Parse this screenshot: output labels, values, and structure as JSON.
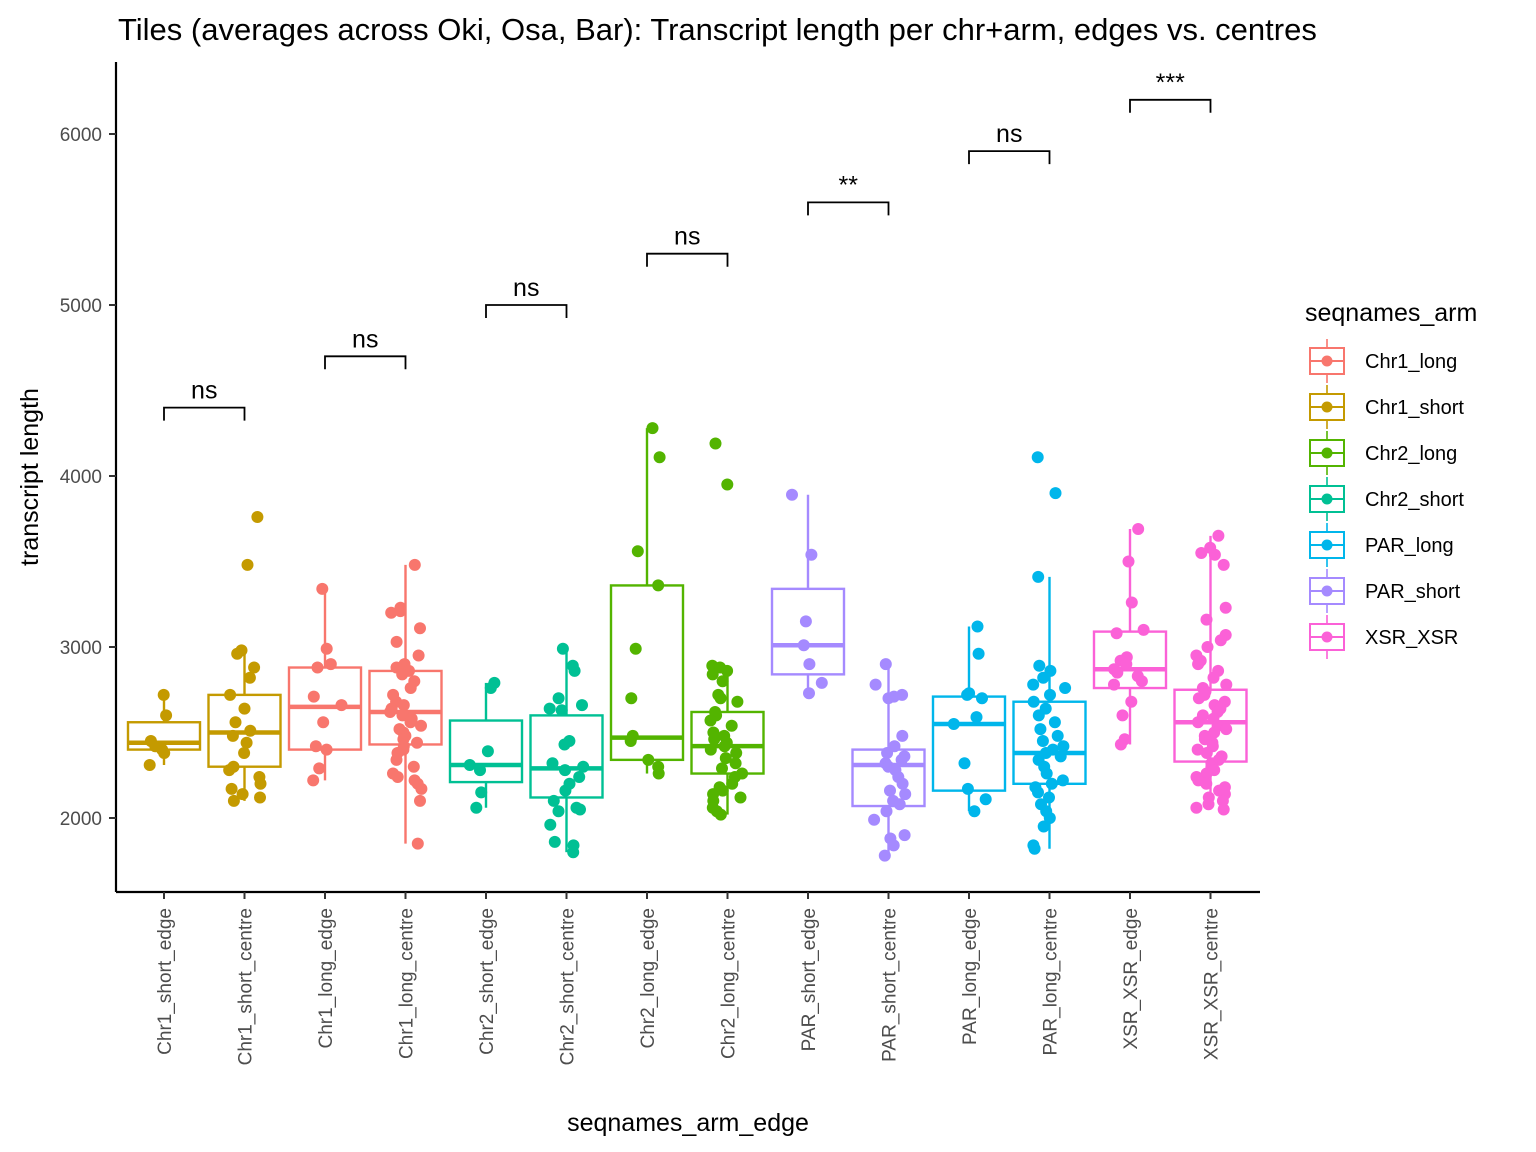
{
  "chart_data": {
    "type": "box",
    "title": "Tiles (averages across Oki, Osa, Bar): Transcript length per chr+arm, edges vs. centres",
    "xlabel": "seqnames_arm_edge",
    "ylabel": "transcript length",
    "ylim": [
      1550,
      6400
    ],
    "yticks": [
      2000,
      3000,
      4000,
      5000,
      6000
    ],
    "grid": false,
    "legend": {
      "title": "seqnames_arm",
      "position": "right",
      "entries": [
        {
          "name": "Chr1_long",
          "color": "#F8766D"
        },
        {
          "name": "Chr1_short",
          "color": "#C49A00"
        },
        {
          "name": "Chr2_long",
          "color": "#53B400"
        },
        {
          "name": "Chr2_short",
          "color": "#00C094"
        },
        {
          "name": "PAR_long",
          "color": "#00B6EB"
        },
        {
          "name": "PAR_short",
          "color": "#A58AFF"
        },
        {
          "name": "XSR_XSR",
          "color": "#FB61D7"
        }
      ]
    },
    "categories": [
      "Chr1_short_edge",
      "Chr1_short_centre",
      "Chr1_long_edge",
      "Chr1_long_centre",
      "Chr2_short_edge",
      "Chr2_short_centre",
      "Chr2_long_edge",
      "Chr2_long_centre",
      "PAR_short_edge",
      "PAR_short_centre",
      "PAR_long_edge",
      "PAR_long_centre",
      "XSR_XSR_edge",
      "XSR_XSR_centre"
    ],
    "boxes": [
      {
        "group": "Chr1_short",
        "min": 2310,
        "q1": 2400,
        "median": 2440,
        "q3": 2560,
        "max": 2720,
        "points": [
          2720,
          2600,
          2450,
          2420,
          2400,
          2380,
          2310
        ]
      },
      {
        "group": "Chr1_short",
        "min": 2100,
        "q1": 2300,
        "median": 2500,
        "q3": 2720,
        "max": 2980,
        "points": [
          3760,
          3480,
          2980,
          2960,
          2880,
          2820,
          2720,
          2640,
          2560,
          2510,
          2480,
          2440,
          2380,
          2300,
          2280,
          2240,
          2200,
          2170,
          2140,
          2120,
          2100
        ]
      },
      {
        "group": "Chr1_long",
        "min": 2220,
        "q1": 2400,
        "median": 2650,
        "q3": 2880,
        "max": 3340,
        "points": [
          3340,
          2990,
          2900,
          2880,
          2710,
          2660,
          2560,
          2420,
          2400,
          2290,
          2220
        ]
      },
      {
        "group": "Chr1_long",
        "min": 1850,
        "q1": 2430,
        "median": 2620,
        "q3": 2860,
        "max": 3480,
        "points": [
          3480,
          3230,
          3210,
          3200,
          3110,
          3030,
          2950,
          2900,
          2880,
          2860,
          2840,
          2800,
          2760,
          2720,
          2680,
          2660,
          2640,
          2620,
          2600,
          2580,
          2560,
          2540,
          2520,
          2500,
          2480,
          2460,
          2440,
          2420,
          2400,
          2380,
          2340,
          2300,
          2260,
          2240,
          2220,
          2200,
          2170,
          2100,
          1850
        ]
      },
      {
        "group": "Chr2_short",
        "min": 2060,
        "q1": 2210,
        "median": 2310,
        "q3": 2570,
        "max": 2790,
        "points": [
          2790,
          2760,
          2390,
          2310,
          2280,
          2150,
          2060
        ]
      },
      {
        "group": "Chr2_short",
        "min": 1800,
        "q1": 2120,
        "median": 2290,
        "q3": 2600,
        "max": 2990,
        "points": [
          2990,
          2890,
          2860,
          2700,
          2660,
          2640,
          2630,
          2450,
          2430,
          2320,
          2300,
          2280,
          2240,
          2200,
          2160,
          2100,
          2060,
          2050,
          2040,
          1960,
          1860,
          1840,
          1800
        ]
      },
      {
        "group": "Chr2_long",
        "min": 2260,
        "q1": 2340,
        "median": 2470,
        "q3": 3360,
        "max": 4280,
        "points": [
          4280,
          4110,
          3560,
          3360,
          2990,
          2700,
          2480,
          2450,
          2340,
          2300,
          2260
        ]
      },
      {
        "group": "Chr2_long",
        "min": 2020,
        "q1": 2260,
        "median": 2420,
        "q3": 2620,
        "max": 2890,
        "points": [
          4190,
          3950,
          2890,
          2880,
          2860,
          2840,
          2800,
          2720,
          2700,
          2680,
          2620,
          2600,
          2570,
          2540,
          2500,
          2480,
          2460,
          2440,
          2420,
          2400,
          2380,
          2350,
          2320,
          2290,
          2260,
          2240,
          2200,
          2180,
          2160,
          2140,
          2120,
          2100,
          2060,
          2040,
          2020
        ]
      },
      {
        "group": "PAR_short",
        "min": 2730,
        "q1": 2840,
        "median": 3010,
        "q3": 3340,
        "max": 3890,
        "points": [
          3890,
          3540,
          3150,
          3010,
          2900,
          2790,
          2730
        ]
      },
      {
        "group": "PAR_short",
        "min": 1780,
        "q1": 2070,
        "median": 2310,
        "q3": 2400,
        "max": 2900,
        "points": [
          2900,
          2780,
          2720,
          2710,
          2700,
          2480,
          2420,
          2380,
          2360,
          2340,
          2320,
          2300,
          2280,
          2240,
          2200,
          2160,
          2140,
          2100,
          2080,
          2040,
          1990,
          1900,
          1880,
          1840,
          1780
        ]
      },
      {
        "group": "PAR_long",
        "min": 2040,
        "q1": 2160,
        "median": 2550,
        "q3": 2710,
        "max": 3120,
        "points": [
          3120,
          2960,
          2730,
          2720,
          2700,
          2590,
          2550,
          2320,
          2170,
          2110,
          2040
        ]
      },
      {
        "group": "PAR_long",
        "min": 1820,
        "q1": 2200,
        "median": 2380,
        "q3": 2680,
        "max": 3410,
        "points": [
          4110,
          3900,
          3410,
          2890,
          2860,
          2820,
          2780,
          2760,
          2720,
          2680,
          2640,
          2600,
          2560,
          2520,
          2480,
          2450,
          2420,
          2400,
          2380,
          2360,
          2340,
          2300,
          2260,
          2220,
          2200,
          2180,
          2150,
          2120,
          2080,
          2040,
          2000,
          1950,
          1840,
          1820
        ]
      },
      {
        "group": "XSR_XSR",
        "min": 2430,
        "q1": 2760,
        "median": 2870,
        "q3": 3090,
        "max": 3690,
        "points": [
          3690,
          3500,
          3260,
          3100,
          3080,
          2940,
          2920,
          2900,
          2870,
          2850,
          2830,
          2800,
          2780,
          2680,
          2600,
          2460,
          2430
        ]
      },
      {
        "group": "XSR_XSR",
        "min": 2050,
        "q1": 2330,
        "median": 2560,
        "q3": 2750,
        "max": 3650,
        "points": [
          3650,
          3580,
          3550,
          3540,
          3480,
          3230,
          3160,
          3070,
          3040,
          3000,
          2950,
          2920,
          2900,
          2860,
          2820,
          2780,
          2760,
          2740,
          2720,
          2700,
          2680,
          2660,
          2640,
          2620,
          2600,
          2580,
          2560,
          2540,
          2520,
          2500,
          2480,
          2460,
          2440,
          2420,
          2400,
          2380,
          2360,
          2340,
          2320,
          2300,
          2280,
          2260,
          2240,
          2220,
          2200,
          2180,
          2160,
          2140,
          2120,
          2100,
          2080,
          2060,
          2050
        ]
      }
    ],
    "comparisons": [
      {
        "pair": [
          "Chr1_short_edge",
          "Chr1_short_centre"
        ],
        "label": "ns",
        "y": 4400
      },
      {
        "pair": [
          "Chr1_long_edge",
          "Chr1_long_centre"
        ],
        "label": "ns",
        "y": 4700
      },
      {
        "pair": [
          "Chr2_short_edge",
          "Chr2_short_centre"
        ],
        "label": "ns",
        "y": 5000
      },
      {
        "pair": [
          "Chr2_long_edge",
          "Chr2_long_centre"
        ],
        "label": "ns",
        "y": 5300
      },
      {
        "pair": [
          "PAR_short_edge",
          "PAR_short_centre"
        ],
        "label": "**",
        "y": 5600
      },
      {
        "pair": [
          "PAR_long_edge",
          "PAR_long_centre"
        ],
        "label": "ns",
        "y": 5900
      },
      {
        "pair": [
          "XSR_XSR_edge",
          "XSR_XSR_centre"
        ],
        "label": "***",
        "y": 6200
      }
    ]
  }
}
